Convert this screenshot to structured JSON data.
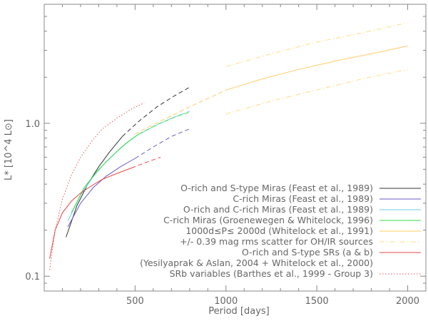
{
  "chart_data": {
    "type": "line",
    "xlabel": "Period [days]",
    "ylabel": "L* [10^4 L⊙]",
    "xlim": [
      0,
      2100
    ],
    "ylim": [
      0.08,
      6.0
    ],
    "yscale": "log",
    "legend_position": "bottom-right",
    "grid": false,
    "x_ticks": [
      500,
      1000,
      1500,
      2000
    ],
    "y_ticks": [
      {
        "value": 0.1,
        "label": "0.1"
      },
      {
        "value": 1.0,
        "label": "1.0"
      }
    ],
    "series": [
      {
        "name": "O-rich and S-type Miras (Feast et al., 1989)",
        "color": "#333333",
        "dash": "solid",
        "x": [
          120,
          180,
          240,
          300,
          360,
          430
        ],
        "y": [
          0.18,
          0.29,
          0.4,
          0.52,
          0.65,
          0.82
        ]
      },
      {
        "name": "O-rich and S-type Miras (Feast et al., 1989) extrapolated",
        "color": "#333333",
        "dash": "dashed",
        "x": [
          430,
          520,
          620,
          720,
          800
        ],
        "y": [
          0.82,
          1.03,
          1.28,
          1.52,
          1.72
        ]
      },
      {
        "name": "C-rich Miras (Feast et al., 1989)",
        "color": "#6a5acd",
        "dash": "solid",
        "x": [
          130,
          200,
          270,
          340,
          420,
          500
        ],
        "y": [
          0.21,
          0.3,
          0.38,
          0.45,
          0.52,
          0.59
        ]
      },
      {
        "name": "C-rich Miras (Feast et al., 1989) extrapolated",
        "color": "#6a5acd",
        "dash": "dashed",
        "x": [
          500,
          600,
          700,
          800
        ],
        "y": [
          0.59,
          0.7,
          0.82,
          0.92
        ]
      },
      {
        "name": "O-rich and C-rich Miras (Feast et al., 1989)",
        "color": "#66ccee",
        "dash": "solid",
        "x": [
          130,
          200,
          270,
          340,
          420,
          500
        ],
        "y": [
          0.23,
          0.34,
          0.45,
          0.56,
          0.69,
          0.82
        ]
      },
      {
        "name": "O-rich and C-rich Miras (Feast et al., 1989) extrapolated",
        "color": "#66ccee",
        "dash": "dashed",
        "x": [
          500,
          600,
          700,
          800
        ],
        "y": [
          0.82,
          0.95,
          1.08,
          1.2
        ]
      },
      {
        "name": "C-rich Miras (Groenewegen & Whitelock, 1996)",
        "color": "#33dd44",
        "dash": "solid",
        "x": [
          150,
          220,
          300,
          380,
          450,
          520
        ],
        "y": [
          0.26,
          0.38,
          0.5,
          0.62,
          0.74,
          0.85
        ]
      },
      {
        "name": "C-rich Miras (Groenewegen & Whitelock, 1996) extrapolated",
        "color": "#33dd44",
        "dash": "dashed",
        "x": [
          520,
          620,
          720,
          800
        ],
        "y": [
          0.85,
          0.98,
          1.1,
          1.18
        ]
      },
      {
        "name": "1000d≤P≤ 2000d (Whitelock et al., 1991)",
        "color": "#ffcc66",
        "dash": "solid",
        "x": [
          1000,
          1200,
          1400,
          1600,
          1800,
          2000
        ],
        "y": [
          1.65,
          1.95,
          2.25,
          2.55,
          2.85,
          3.2
        ]
      },
      {
        "name": "1000d≤P≤ 2000d (Whitelock et al., 1991) extrapolated",
        "color": "#ffcc66",
        "dash": "dashed",
        "x": [
          500,
          600,
          700,
          800,
          900,
          1000
        ],
        "y": [
          0.85,
          0.98,
          1.12,
          1.28,
          1.45,
          1.65
        ]
      },
      {
        "name": "+/- 0.39 mag rms scatter for OH/IR sources (upper)",
        "color": "#ffdd88",
        "dash": "dashdot",
        "x": [
          1000,
          1250,
          1500,
          1750,
          2000
        ],
        "y": [
          2.35,
          2.85,
          3.4,
          3.9,
          4.55
        ]
      },
      {
        "name": "+/- 0.39 mag rms scatter for OH/IR sources (lower)",
        "color": "#ffdd88",
        "dash": "dashdot",
        "x": [
          1000,
          1250,
          1500,
          1750,
          2000
        ],
        "y": [
          1.15,
          1.4,
          1.65,
          1.95,
          2.25
        ]
      },
      {
        "name": "O-rich and S-type SRs (a & b)",
        "color": "#ee4444",
        "dash": "solid",
        "x": [
          30,
          60,
          100,
          150,
          200,
          260,
          320,
          400,
          480
        ],
        "y": [
          0.13,
          0.2,
          0.26,
          0.31,
          0.35,
          0.39,
          0.43,
          0.47,
          0.51
        ]
      },
      {
        "name": "O-rich and S-type SRs (a & b) extrapolated",
        "color": "#ee4444",
        "dash": "dashed",
        "x": [
          480,
          560,
          640
        ],
        "y": [
          0.51,
          0.555,
          0.6
        ]
      },
      {
        "name": "SRb variables (Barthes et al., 1999 - Group 3)",
        "color": "#ee5555",
        "dash": "dotted",
        "x": [
          30,
          60,
          100,
          150,
          200,
          260,
          320,
          400,
          480,
          550
        ],
        "y": [
          0.11,
          0.2,
          0.32,
          0.46,
          0.6,
          0.76,
          0.92,
          1.08,
          1.24,
          1.36
        ]
      }
    ],
    "legend": [
      {
        "text": "O-rich and S-type Miras (Feast et al., 1989)",
        "color": "#333333",
        "dash": "solid"
      },
      {
        "text": "C-rich Miras (Feast et al., 1989)",
        "color": "#6a5acd",
        "dash": "solid"
      },
      {
        "text": "O-rich and C-rich Miras (Feast et al., 1989)",
        "color": "#66ccee",
        "dash": "solid"
      },
      {
        "text": "C-rich Miras (Groenewegen & Whitelock, 1996)",
        "color": "#33dd44",
        "dash": "solid"
      },
      {
        "text": "1000d≤P≤ 2000d (Whitelock et al., 1991)",
        "color": "#ffcc66",
        "dash": "solid"
      },
      {
        "text": "+/- 0.39 mag rms scatter for OH/IR sources",
        "color": "#ffdd88",
        "dash": "dashdot"
      },
      {
        "text": "O-rich and S-type SRs (a & b)",
        "color": "#ee4444",
        "dash": "solid"
      },
      {
        "text": "(Yesilyaprak & Aslan, 2004 +  Whitelock et al., 2000)",
        "color": "",
        "dash": "none"
      },
      {
        "text": "SRb variables (Barthes et al., 1999 - Group 3)",
        "color": "#ee5555",
        "dash": "dotted"
      }
    ]
  }
}
